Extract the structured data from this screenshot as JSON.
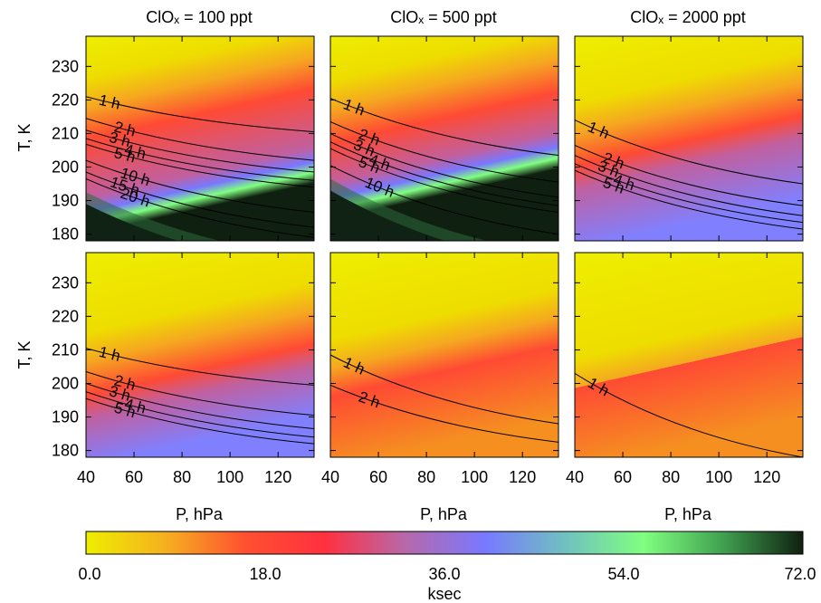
{
  "chart_data": {
    "type": "heatmap",
    "panel_titles": [
      "ClOₓ = 100 ppt",
      "ClOₓ = 500 ppt",
      "ClOₓ = 2000 ppt"
    ],
    "xlabel": "P, hPa",
    "ylabel": "T, K",
    "xlim": [
      40,
      135
    ],
    "ylim": [
      178,
      239
    ],
    "xticks": [
      "40",
      "60",
      "80",
      "100",
      "120"
    ],
    "yticks": [
      "230",
      "220",
      "210",
      "200",
      "190",
      "180"
    ],
    "colorbar": {
      "label": "ksec",
      "min": 0.0,
      "max": 72.0,
      "tick_labels": [
        "0.0",
        "18.0",
        "36.0",
        "54.0",
        "72.0"
      ],
      "colors": [
        "#eeee00",
        "#f5b020",
        "#ff5030",
        "#ff3040",
        "#b868a8",
        "#7878ff",
        "#70c0c0",
        "#80ff80",
        "#40a050",
        "#102010"
      ]
    },
    "panels": [
      {
        "row": 0,
        "col": 0,
        "dark_region": true,
        "contours": [
          {
            "label": "1 h",
            "T_at_40": 221.0,
            "T_at_135": 210.5
          },
          {
            "label": "2 h",
            "T_at_40": 214.5,
            "T_at_135": 202.0
          },
          {
            "label": "3 h",
            "T_at_40": 211.0,
            "T_at_135": 198.5
          },
          {
            "label": "4 h",
            "T_at_40": 208.5,
            "T_at_135": 196.0
          },
          {
            "label": "5 h",
            "T_at_40": 206.8,
            "T_at_135": 194.0
          },
          {
            "label": "10 h",
            "T_at_40": 202.0,
            "T_at_135": 186.5
          },
          {
            "label": "15 h",
            "T_at_40": 198.5,
            "T_at_135": 182.0
          },
          {
            "label": "20 h",
            "T_at_40": 196.5,
            "T_at_135": 179.0
          }
        ]
      },
      {
        "row": 0,
        "col": 1,
        "dark_region": true,
        "contours": [
          {
            "label": "1 h",
            "T_at_40": 220.5,
            "T_at_135": 203.5
          },
          {
            "label": "2 h",
            "T_at_40": 213.5,
            "T_at_135": 195.5
          },
          {
            "label": "3 h",
            "T_at_40": 210.0,
            "T_at_135": 191.0
          },
          {
            "label": "4 h",
            "T_at_40": 207.5,
            "T_at_135": 188.5
          },
          {
            "label": "5 h",
            "T_at_40": 205.5,
            "T_at_135": 186.5
          },
          {
            "label": "10 h",
            "T_at_40": 200.5,
            "T_at_135": 180.0
          }
        ]
      },
      {
        "row": 0,
        "col": 2,
        "dark_region": false,
        "contours": [
          {
            "label": "1 h",
            "T_at_40": 214.0,
            "T_at_135": 195.0
          },
          {
            "label": "2 h",
            "T_at_40": 206.5,
            "T_at_135": 188.5
          },
          {
            "label": "3 h",
            "T_at_40": 203.5,
            "T_at_135": 185.5
          },
          {
            "label": "4 h",
            "T_at_40": 201.0,
            "T_at_135": 183.5
          },
          {
            "label": "5 h",
            "T_at_40": 199.0,
            "T_at_135": 181.5
          }
        ]
      },
      {
        "row": 1,
        "col": 0,
        "dark_region": false,
        "contours": [
          {
            "label": "1 h",
            "T_at_40": 210.5,
            "T_at_135": 199.5
          },
          {
            "label": "2 h",
            "T_at_40": 203.5,
            "T_at_135": 190.5
          },
          {
            "label": "3 h",
            "T_at_40": 200.0,
            "T_at_135": 186.5
          },
          {
            "label": "4 h",
            "T_at_40": 197.5,
            "T_at_135": 184.0
          },
          {
            "label": "5 h",
            "T_at_40": 195.5,
            "T_at_135": 182.0
          }
        ]
      },
      {
        "row": 1,
        "col": 1,
        "dark_region": false,
        "contours": [
          {
            "label": "1 h",
            "T_at_40": 208.5,
            "T_at_135": 188.0
          },
          {
            "label": "2 h",
            "T_at_40": 199.5,
            "T_at_135": 182.5
          }
        ]
      },
      {
        "row": 1,
        "col": 2,
        "dark_region": false,
        "contours": [
          {
            "label": "1 h",
            "T_at_40": 203.0,
            "T_at_135": 178.0
          }
        ]
      }
    ]
  }
}
